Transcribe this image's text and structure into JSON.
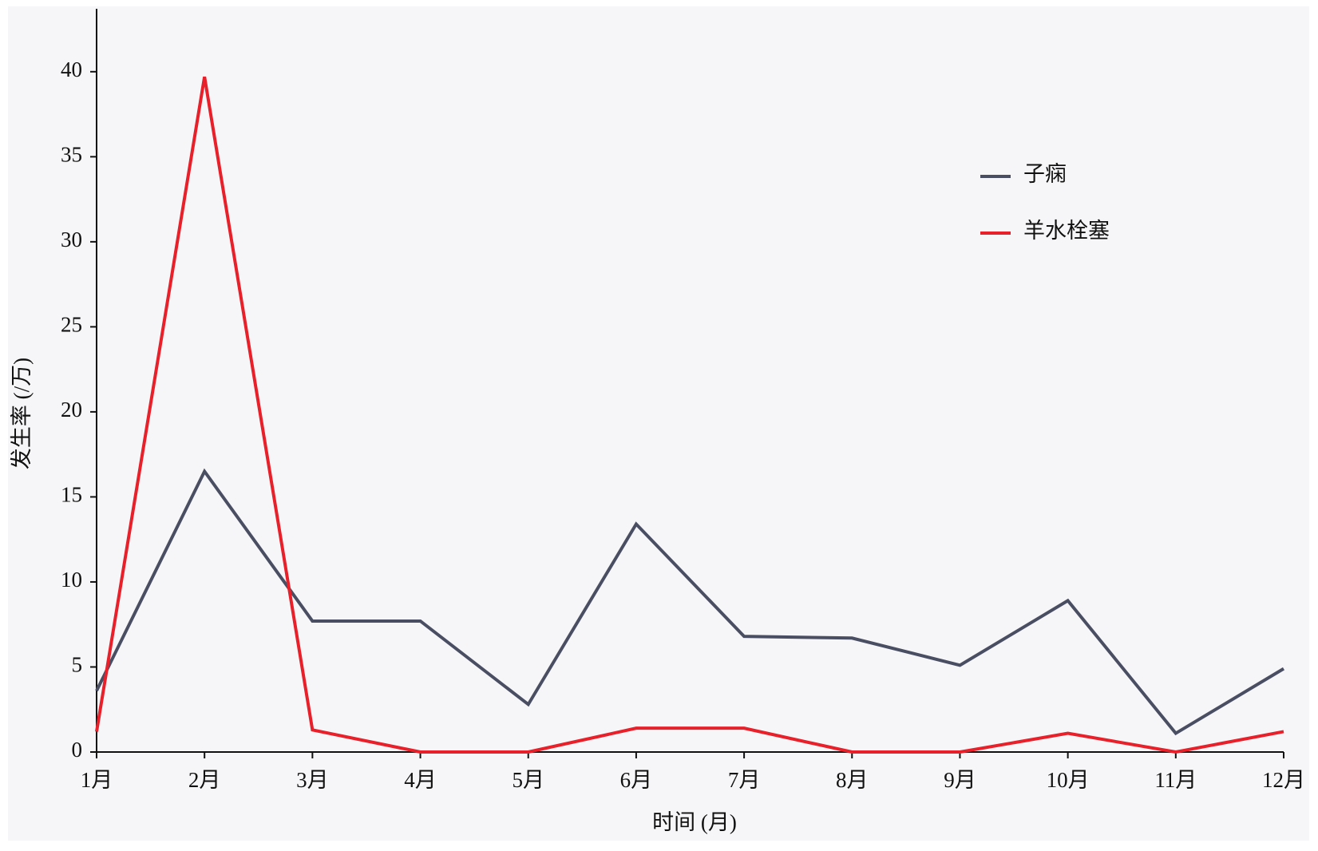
{
  "chart_data": {
    "type": "line",
    "x_label": "时间 (月)",
    "y_label": "发生率 (/万)",
    "categories": [
      "1月",
      "2月",
      "3月",
      "4月",
      "5月",
      "6月",
      "7月",
      "8月",
      "9月",
      "10月",
      "11月",
      "12月"
    ],
    "series": [
      {
        "name": "子痫",
        "color": "#4a4e62",
        "values": [
          3.6,
          16.5,
          7.7,
          7.7,
          2.8,
          13.4,
          6.8,
          6.7,
          5.1,
          8.9,
          1.1,
          4.9
        ]
      },
      {
        "name": "羊水栓塞",
        "color": "#e8202a",
        "values": [
          1.2,
          39.7,
          1.3,
          0,
          0,
          1.4,
          1.4,
          0,
          0,
          1.1,
          0,
          1.2
        ]
      }
    ],
    "ylim": [
      0,
      43.7
    ],
    "yticks": [
      0,
      5,
      10,
      15,
      20,
      25,
      30,
      35,
      40
    ],
    "legend": "upper right"
  }
}
